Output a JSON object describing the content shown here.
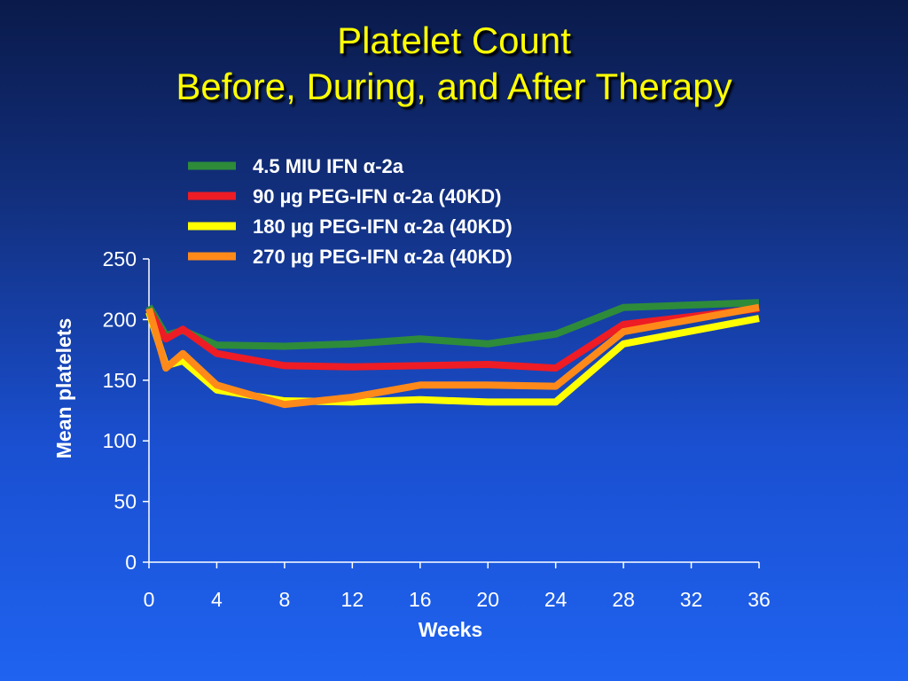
{
  "slide": {
    "title_line1": "Platelet Count",
    "title_line2": "Before, During, and After Therapy"
  },
  "chart_data": {
    "type": "line",
    "xlabel": "Weeks",
    "ylabel": "Mean platelets",
    "xlim": [
      0,
      36
    ],
    "ylim": [
      0,
      250
    ],
    "xticks": [
      0,
      4,
      8,
      12,
      16,
      20,
      24,
      28,
      32,
      36
    ],
    "yticks": [
      0,
      50,
      100,
      150,
      200,
      250
    ],
    "grid": false,
    "legend_position": "top",
    "series": [
      {
        "name": "4.5 MIU IFN α-2a",
        "color": "#2e8b3a",
        "x": [
          0,
          1,
          2,
          4,
          8,
          12,
          16,
          20,
          24,
          28,
          36
        ],
        "y": [
          211,
          187,
          191,
          179,
          178,
          180,
          184,
          180,
          188,
          210,
          214
        ]
      },
      {
        "name": "90 µg PEG-IFN α-2a (40KD)",
        "color": "#ee1c25",
        "x": [
          0,
          1,
          2,
          4,
          8,
          12,
          16,
          20,
          24,
          28,
          36
        ],
        "y": [
          208,
          184,
          192,
          172,
          162,
          161,
          162,
          163,
          160,
          196,
          209
        ]
      },
      {
        "name": "180 µg PEG-IFN α-2a (40KD)",
        "color": "#ffff00",
        "x": [
          0,
          1,
          2,
          4,
          8,
          12,
          16,
          20,
          24,
          28,
          36
        ],
        "y": [
          206,
          162,
          166,
          142,
          133,
          132,
          134,
          132,
          132,
          180,
          201
        ]
      },
      {
        "name": "270 µg PEG-IFN α-2a (40KD)",
        "color": "#ff8a1a",
        "x": [
          0,
          1,
          2,
          4,
          8,
          12,
          16,
          20,
          24,
          28,
          36
        ],
        "y": [
          209,
          160,
          172,
          146,
          130,
          136,
          146,
          146,
          145,
          190,
          210
        ]
      }
    ]
  }
}
